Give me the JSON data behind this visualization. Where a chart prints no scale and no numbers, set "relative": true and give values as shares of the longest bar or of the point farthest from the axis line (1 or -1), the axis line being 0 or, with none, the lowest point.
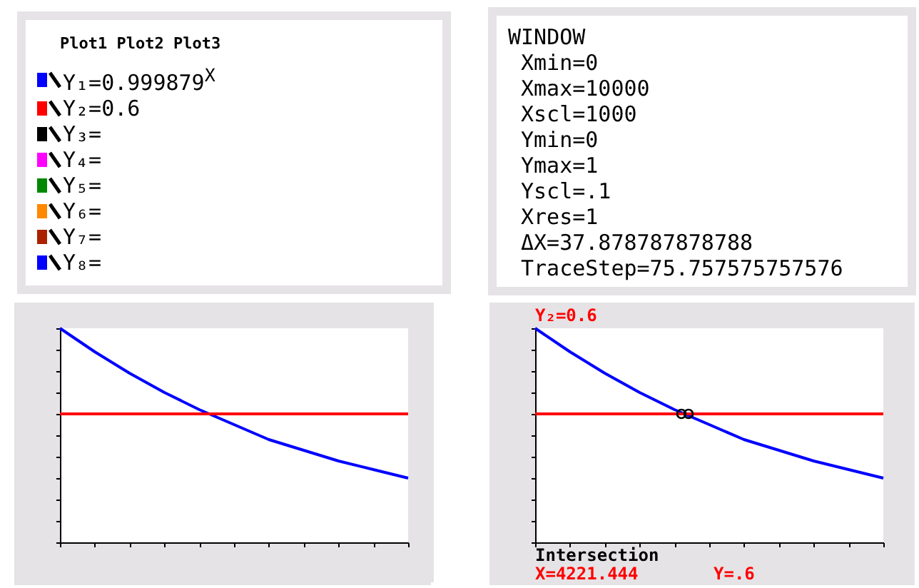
{
  "chart_data": [
    {
      "type": "other",
      "annotations": [
        "Plot1  Plot2  Plot3",
        "Y₁=0.999879$^{X}$",
        "Y₂=0.6",
        "Y₃=",
        "Y₄=",
        "Y₅=",
        "Y₆=",
        "Y₇=",
        "Y₈="
      ]
    },
    {
      "type": "other",
      "annotations": [
        "WINDOW",
        "Xmin=0",
        "Xmax=10000",
        "Xscl=1000",
        "Ymin=0",
        "Ymax=1",
        "Yscl=.1",
        "Xres=1",
        "ΔX=37.878787878788",
        "TraceStep=75.757575757576"
      ]
    },
    {
      "type": "line",
      "relative": true,
      "categories": [
        null,
        null,
        null,
        null,
        null,
        null,
        null,
        null,
        null,
        null,
        null
      ],
      "series": [
        {
          "color": "#0000ff",
          "values": [
            1,
            0.89,
            0.79,
            0.7,
            0.62,
            0.55,
            0.48,
            0.43,
            0.38,
            0.34,
            0.3
          ]
        }
      ],
      "ref_lines": [
        {
          "axis": "y",
          "value": 0.6,
          "color": "#ff0000"
        }
      ]
    },
    {
      "type": "line",
      "relative": true,
      "categories": [
        null,
        null,
        null,
        null,
        null,
        null,
        null,
        null,
        null,
        null,
        null
      ],
      "series": [
        {
          "color": "#0000ff",
          "values": [
            1,
            0.89,
            0.79,
            0.7,
            0.62,
            0.55,
            0.48,
            0.43,
            0.38,
            0.34,
            0.3
          ]
        }
      ],
      "ref_lines": [
        {
          "axis": "y",
          "value": 0.6,
          "color": "#ff0000"
        }
      ],
      "annotations": [
        "Y₂=0.6",
        "Intersection",
        "X=4221.444",
        "Y=.6"
      ]
    }
  ]
}
